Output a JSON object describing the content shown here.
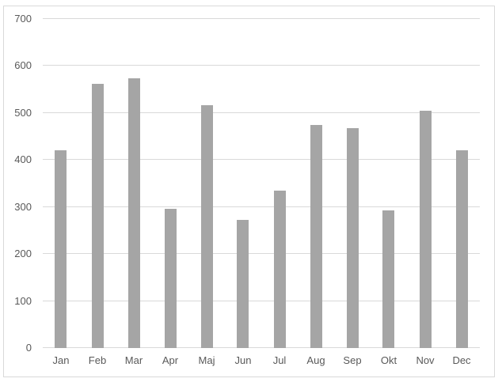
{
  "chart_data": {
    "type": "bar",
    "title": "",
    "xlabel": "",
    "ylabel": "",
    "categories": [
      "Jan",
      "Feb",
      "Mar",
      "Apr",
      "Maj",
      "Jun",
      "Jul",
      "Aug",
      "Sep",
      "Okt",
      "Nov",
      "Dec"
    ],
    "values": [
      420,
      562,
      574,
      297,
      517,
      272,
      335,
      475,
      468,
      292,
      505,
      420
    ],
    "ylim": [
      0,
      700
    ],
    "y_ticks": [
      0,
      100,
      200,
      300,
      400,
      500,
      600,
      700
    ],
    "grid": true,
    "legend": false,
    "colors": {
      "bar": "#a5a5a5",
      "gridline": "#d9d9d9",
      "axis_text": "#595959",
      "frame_border": "#d9d9d9",
      "background": "#ffffff"
    }
  }
}
